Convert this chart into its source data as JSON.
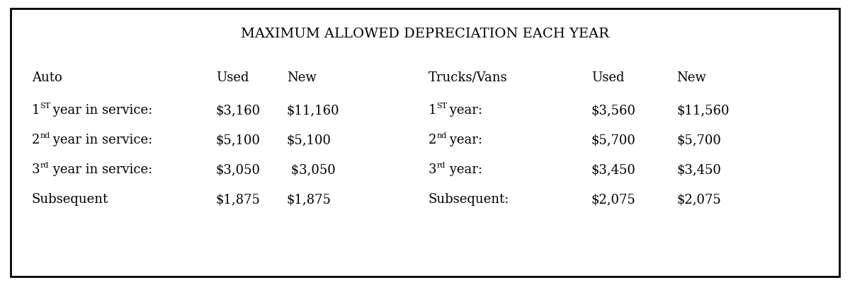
{
  "title": "MAXIMUM ALLOWED DEPRECIATION EACH YEAR",
  "title_fontsize": 14,
  "background_color": "#ffffff",
  "border_color": "#000000",
  "text_color": "#000000",
  "body_fontsize": 13,
  "auto_section": {
    "header_label": "Auto",
    "col1_header": "Used",
    "col2_header": "New",
    "rows": [
      {
        "label_main": "1",
        "label_super": "ST",
        "label_rest": " year in service:",
        "col1": "$3,160",
        "col2": "$11,160"
      },
      {
        "label_main": "2",
        "label_super": "nd",
        "label_rest": " year in service:",
        "col1": "$5,100",
        "col2": "$5,100"
      },
      {
        "label_main": "3",
        "label_super": "rd",
        "label_rest": " year in service:",
        "col1": "$3,050",
        "col2": " $3,050"
      },
      {
        "label_main": "Subsequent",
        "label_super": "",
        "label_rest": "",
        "col1": "$1,875",
        "col2": "$1,875"
      }
    ]
  },
  "trucks_section": {
    "header_label": "Trucks/Vans",
    "col1_header": "Used",
    "col2_header": "New",
    "rows": [
      {
        "label_main": "1",
        "label_super": "ST",
        "label_rest": " year:",
        "col1": "$3,560",
        "col2": "$11,560"
      },
      {
        "label_main": "2",
        "label_super": "nd",
        "label_rest": " year:",
        "col1": "$5,700",
        "col2": "$5,700"
      },
      {
        "label_main": "3",
        "label_super": "rd",
        "label_rest": " year:",
        "col1": "$3,450",
        "col2": "$3,450"
      },
      {
        "label_main": "Subsequent:",
        "label_super": "",
        "label_rest": "",
        "col1": "$2,075",
        "col2": "$2,075"
      }
    ]
  }
}
